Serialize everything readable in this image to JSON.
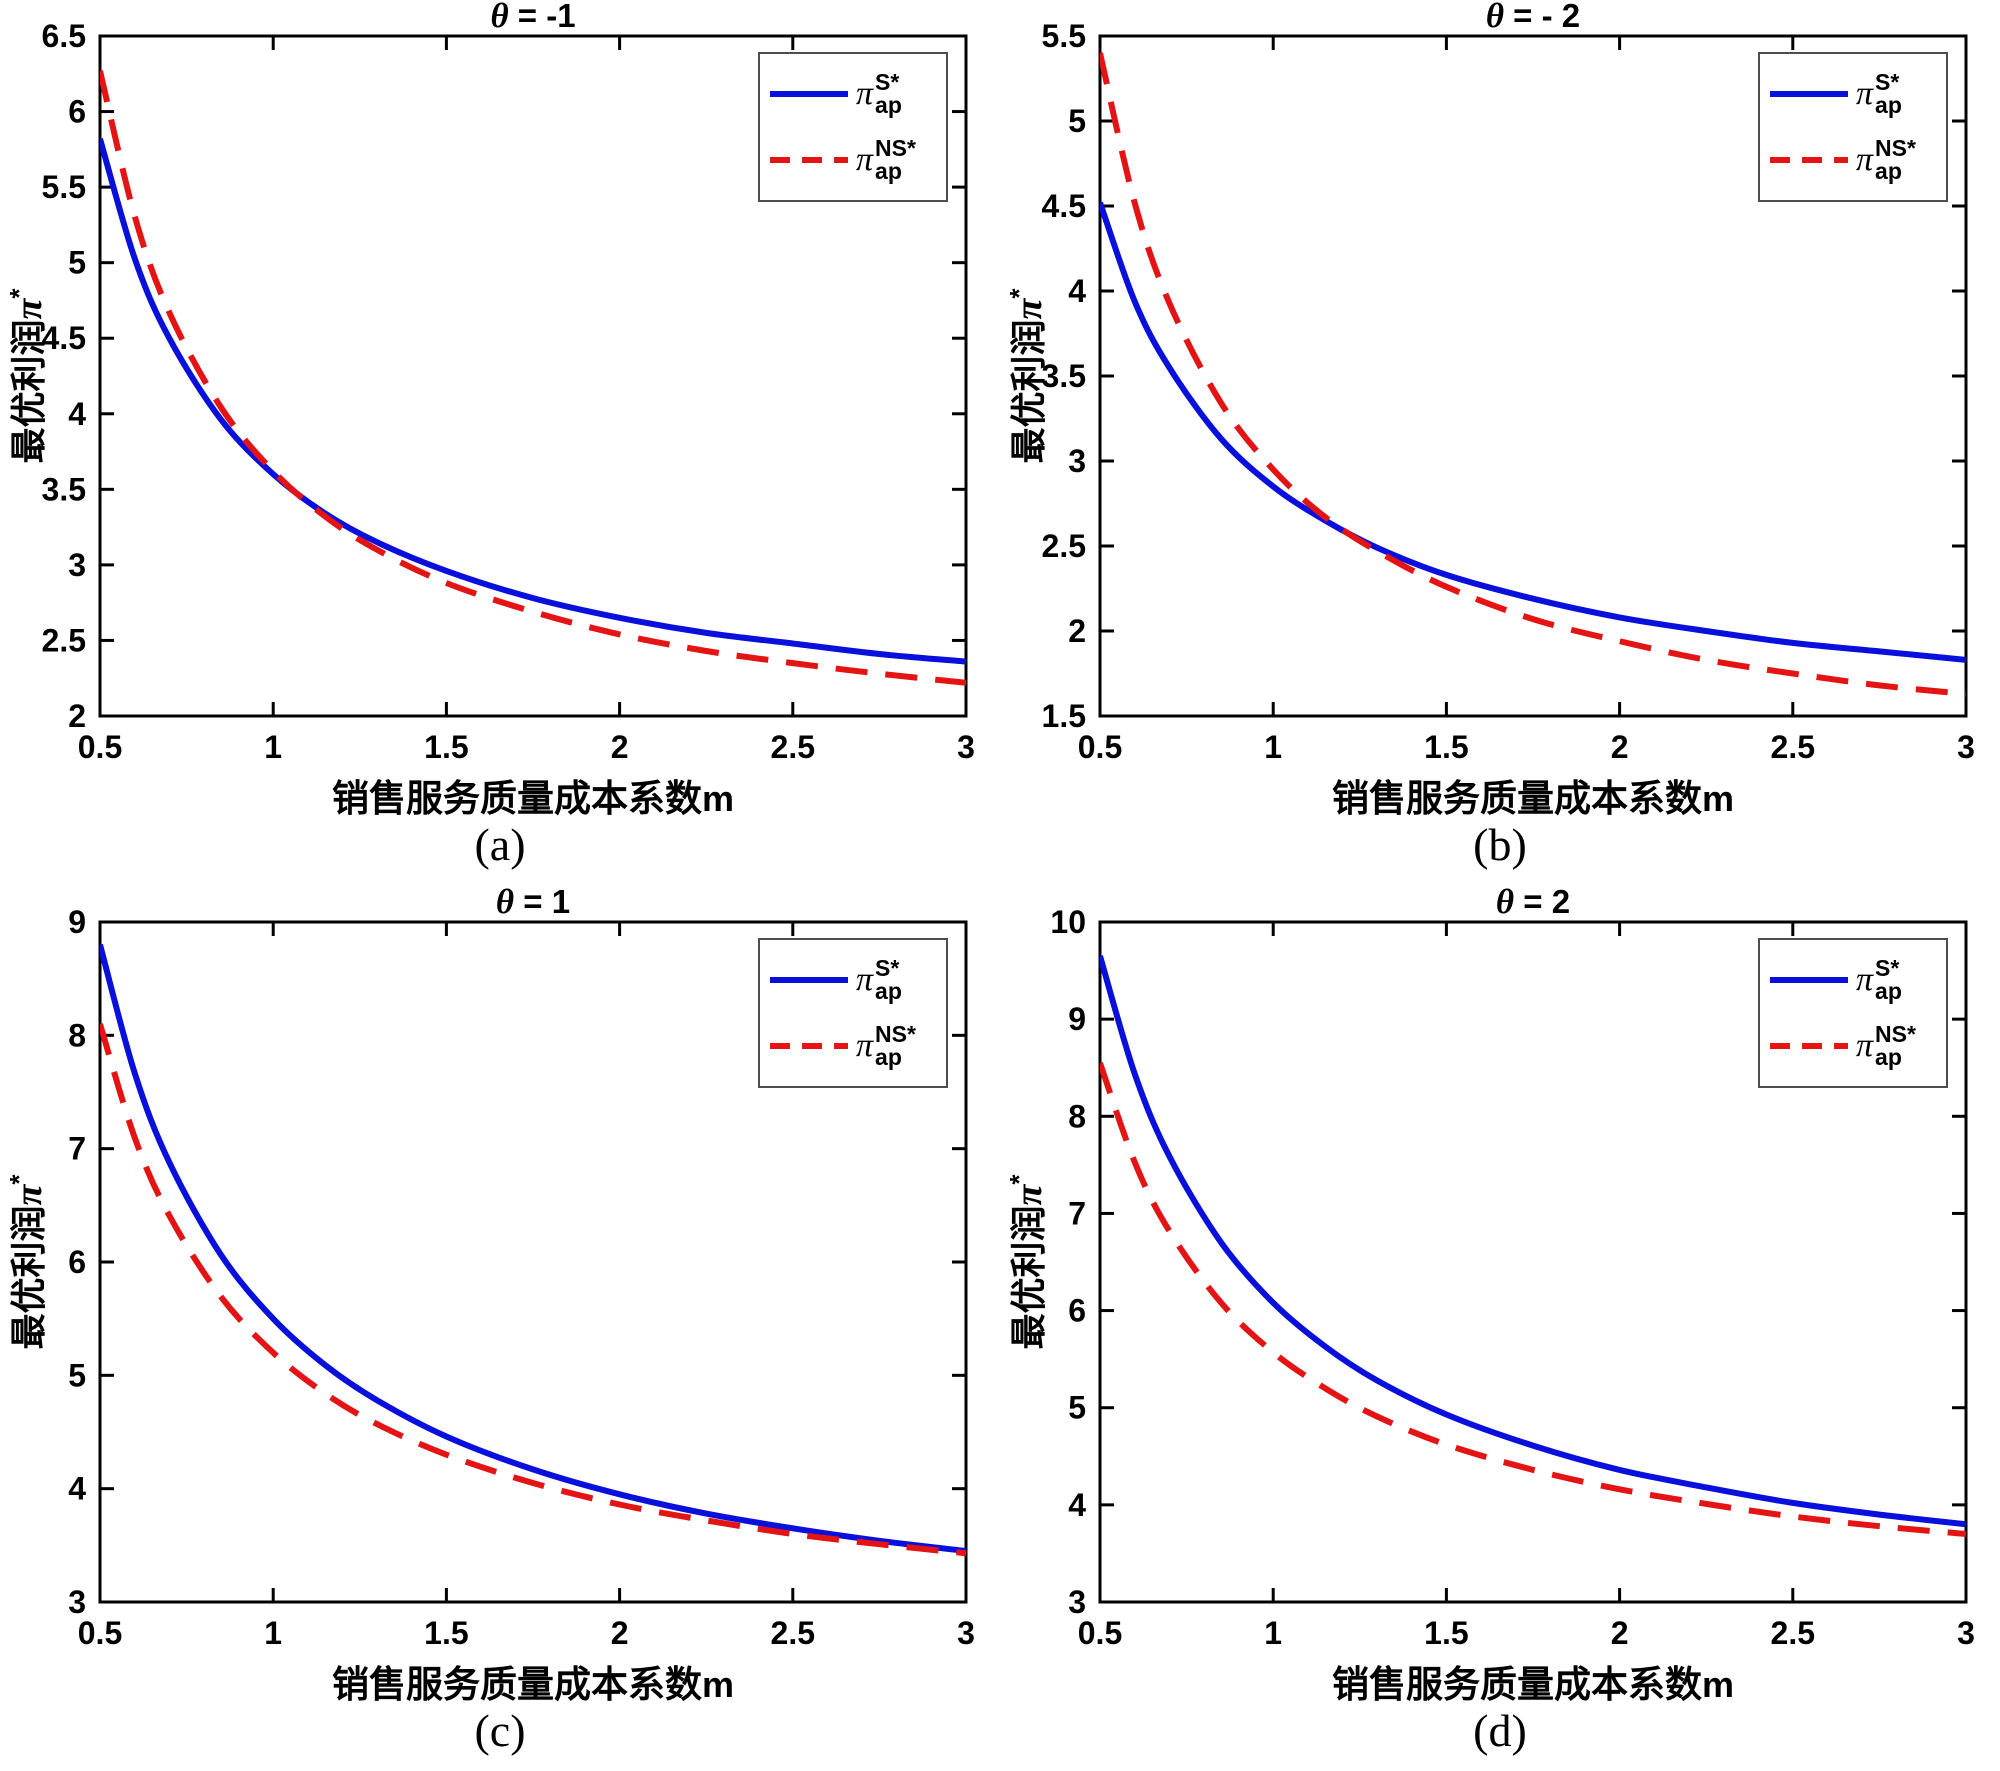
{
  "figure": {
    "background": "#ffffff",
    "axis_color": "#000000",
    "blue": "#0a10dc",
    "red": "#e41414"
  },
  "chart_data": [
    {
      "id": "a",
      "type": "line",
      "title": "θ = -1",
      "title_sym": "θ",
      "title_rest": " = -1",
      "caption": "(a)",
      "xlabel": "销售服务质量成本系数m",
      "xlabel_cn": "销售服务质量成本系数",
      "xlabel_var": "m",
      "ylabel": "最优利润π*",
      "ylabel_cn": "最优利润",
      "ylabel_sym": "π",
      "ylabel_sup": "*",
      "grid": false,
      "legend_position": "top-right",
      "xlim": [
        0.5,
        3
      ],
      "ylim": [
        2,
        6.5
      ],
      "xticks": [
        0.5,
        1,
        1.5,
        2,
        2.5,
        3
      ],
      "xtick_labels": [
        "0.5",
        "1",
        "1.5",
        "2",
        "2.5",
        "3"
      ],
      "yticks": [
        2,
        2.5,
        3,
        3.5,
        4,
        4.5,
        5,
        5.5,
        6,
        6.5
      ],
      "ytick_labels": [
        "2",
        "2.5",
        "3",
        "3.5",
        "4",
        "4.5",
        "5",
        "5.5",
        "6",
        "6.5"
      ],
      "x": [
        0.5,
        0.6,
        0.7,
        0.85,
        1.0,
        1.15,
        1.3,
        1.5,
        1.75,
        2.0,
        2.25,
        2.5,
        2.75,
        3.0
      ],
      "series": [
        {
          "name": "π_ap^S*",
          "legend_base": "π",
          "legend_sup": "S*",
          "legend_sub": "ap",
          "color": "#0a10dc",
          "style": "solid",
          "y": [
            5.82,
            5.03,
            4.5,
            3.96,
            3.6,
            3.34,
            3.15,
            2.96,
            2.78,
            2.65,
            2.55,
            2.48,
            2.41,
            2.36
          ]
        },
        {
          "name": "π_ap^NS*",
          "legend_base": "π",
          "legend_sup": "NS*",
          "legend_sub": "ap",
          "color": "#e41414",
          "style": "dashed",
          "y": [
            6.27,
            5.31,
            4.67,
            4.04,
            3.62,
            3.32,
            3.1,
            2.88,
            2.69,
            2.54,
            2.43,
            2.35,
            2.28,
            2.22
          ]
        }
      ]
    },
    {
      "id": "b",
      "type": "line",
      "title": "θ = - 2",
      "title_sym": "θ",
      "title_rest": " = - 2",
      "caption": "(b)",
      "xlabel": "销售服务质量成本系数m",
      "xlabel_cn": "销售服务质量成本系数",
      "xlabel_var": "m",
      "ylabel": "最优利润π*",
      "ylabel_cn": "最优利润",
      "ylabel_sym": "π",
      "ylabel_sup": "*",
      "grid": false,
      "legend_position": "top-right",
      "xlim": [
        0.5,
        3
      ],
      "ylim": [
        1.5,
        5.5
      ],
      "xticks": [
        0.5,
        1,
        1.5,
        2,
        2.5,
        3
      ],
      "xtick_labels": [
        "0.5",
        "1",
        "1.5",
        "2",
        "2.5",
        "3"
      ],
      "yticks": [
        1.5,
        2,
        2.5,
        3,
        3.5,
        4,
        4.5,
        5,
        5.5
      ],
      "ytick_labels": [
        "1.5",
        "2",
        "2.5",
        "3",
        "3.5",
        "4",
        "4.5",
        "5",
        "5.5"
      ],
      "x": [
        0.5,
        0.6,
        0.7,
        0.85,
        1.0,
        1.15,
        1.3,
        1.5,
        1.75,
        2.0,
        2.25,
        2.5,
        2.75,
        3.0
      ],
      "series": [
        {
          "name": "π_ap^S*",
          "legend_base": "π",
          "legend_sup": "S*",
          "legend_sub": "ap",
          "color": "#0a10dc",
          "style": "solid",
          "y": [
            4.52,
            3.94,
            3.55,
            3.13,
            2.85,
            2.65,
            2.49,
            2.33,
            2.19,
            2.08,
            2.0,
            1.93,
            1.88,
            1.83
          ]
        },
        {
          "name": "π_ap^NS*",
          "legend_base": "π",
          "legend_sup": "NS*",
          "legend_sub": "ap",
          "color": "#e41414",
          "style": "dashed",
          "y": [
            5.4,
            4.52,
            3.93,
            3.34,
            2.95,
            2.67,
            2.47,
            2.26,
            2.07,
            1.94,
            1.83,
            1.75,
            1.68,
            1.63
          ]
        }
      ]
    },
    {
      "id": "c",
      "type": "line",
      "title": "θ = 1",
      "title_sym": "θ",
      "title_rest": " = 1",
      "caption": "(c)",
      "xlabel": "销售服务质量成本系数m",
      "xlabel_cn": "销售服务质量成本系数",
      "xlabel_var": "m",
      "ylabel": "最优利润π*",
      "ylabel_cn": "最优利润",
      "ylabel_sym": "π",
      "ylabel_sup": "*",
      "grid": false,
      "legend_position": "top-right",
      "xlim": [
        0.5,
        3
      ],
      "ylim": [
        3,
        9
      ],
      "xticks": [
        0.5,
        1,
        1.5,
        2,
        2.5,
        3
      ],
      "xtick_labels": [
        "0.5",
        "1",
        "1.5",
        "2",
        "2.5",
        "3"
      ],
      "yticks": [
        3,
        4,
        5,
        6,
        7,
        8,
        9
      ],
      "ytick_labels": [
        "3",
        "4",
        "5",
        "6",
        "7",
        "8",
        "9"
      ],
      "x": [
        0.5,
        0.6,
        0.7,
        0.85,
        1.0,
        1.15,
        1.3,
        1.5,
        1.75,
        2.0,
        2.25,
        2.5,
        2.75,
        3.0
      ],
      "series": [
        {
          "name": "π_ap^S*",
          "legend_base": "π",
          "legend_sup": "S*",
          "legend_sub": "ap",
          "color": "#0a10dc",
          "style": "solid",
          "y": [
            8.8,
            7.67,
            6.88,
            6.06,
            5.5,
            5.09,
            4.78,
            4.46,
            4.17,
            3.95,
            3.78,
            3.65,
            3.54,
            3.45
          ]
        },
        {
          "name": "π_ap^NS*",
          "legend_base": "π",
          "legend_sup": "NS*",
          "legend_sub": "ap",
          "color": "#e41414",
          "style": "dashed",
          "y": [
            8.1,
            7.1,
            6.41,
            5.69,
            5.2,
            4.84,
            4.57,
            4.3,
            4.05,
            3.86,
            3.72,
            3.6,
            3.51,
            3.43
          ]
        }
      ]
    },
    {
      "id": "d",
      "type": "line",
      "title": "θ = 2",
      "title_sym": "θ",
      "title_rest": " = 2",
      "caption": "(d)",
      "xlabel": "销售服务质量成本系数m",
      "xlabel_cn": "销售服务质量成本系数",
      "xlabel_var": "m",
      "ylabel": "最优利润π*",
      "ylabel_cn": "最优利润",
      "ylabel_sym": "π",
      "ylabel_sup": "*",
      "grid": false,
      "legend_position": "top-right",
      "xlim": [
        0.5,
        3
      ],
      "ylim": [
        3,
        10
      ],
      "xticks": [
        0.5,
        1,
        1.5,
        2,
        2.5,
        3
      ],
      "xtick_labels": [
        "0.5",
        "1",
        "1.5",
        "2",
        "2.5",
        "3"
      ],
      "yticks": [
        3,
        4,
        5,
        6,
        7,
        8,
        9,
        10
      ],
      "ytick_labels": [
        "3",
        "4",
        "5",
        "6",
        "7",
        "8",
        "9",
        "10"
      ],
      "x": [
        0.5,
        0.6,
        0.7,
        0.85,
        1.0,
        1.15,
        1.3,
        1.5,
        1.75,
        2.0,
        2.25,
        2.5,
        2.75,
        3.0
      ],
      "series": [
        {
          "name": "π_ap^S*",
          "legend_base": "π",
          "legend_sup": "S*",
          "legend_sub": "ap",
          "color": "#0a10dc",
          "style": "solid",
          "y": [
            9.65,
            8.44,
            7.59,
            6.7,
            6.08,
            5.63,
            5.28,
            4.93,
            4.61,
            4.36,
            4.18,
            4.02,
            3.9,
            3.8
          ]
        },
        {
          "name": "π_ap^NS*",
          "legend_base": "π",
          "legend_sup": "NS*",
          "legend_sub": "ap",
          "color": "#e41414",
          "style": "dashed",
          "y": [
            8.55,
            7.53,
            6.82,
            6.08,
            5.57,
            5.2,
            4.91,
            4.62,
            4.36,
            4.16,
            4.01,
            3.88,
            3.78,
            3.7
          ]
        }
      ]
    }
  ]
}
